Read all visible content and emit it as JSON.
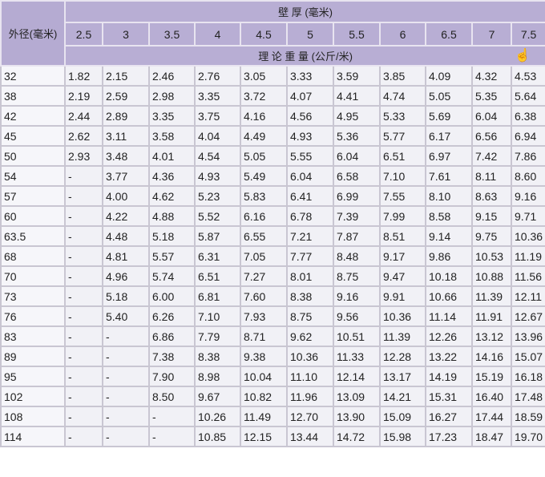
{
  "header": {
    "outer_diameter": "外径(毫米)",
    "wall_thickness": "壁 厚 (毫米)",
    "theoretical_weight": "理 论 重 量 (公斤/米)",
    "thicknesses": [
      "2.5",
      "3",
      "3.5",
      "4",
      "4.5",
      "5",
      "5.5",
      "6",
      "6.5",
      "7",
      "7.5"
    ]
  },
  "rows": [
    {
      "od": "32",
      "w": [
        "1.82",
        "2.15",
        "2.46",
        "2.76",
        "3.05",
        "3.33",
        "3.59",
        "3.85",
        "4.09",
        "4.32",
        "4.53"
      ]
    },
    {
      "od": "38",
      "w": [
        "2.19",
        "2.59",
        "2.98",
        "3.35",
        "3.72",
        "4.07",
        "4.41",
        "4.74",
        "5.05",
        "5.35",
        "5.64"
      ]
    },
    {
      "od": "42",
      "w": [
        "2.44",
        "2.89",
        "3.35",
        "3.75",
        "4.16",
        "4.56",
        "4.95",
        "5.33",
        "5.69",
        "6.04",
        "6.38"
      ]
    },
    {
      "od": "45",
      "w": [
        "2.62",
        "3.11",
        "3.58",
        "4.04",
        "4.49",
        "4.93",
        "5.36",
        "5.77",
        "6.17",
        "6.56",
        "6.94"
      ]
    },
    {
      "od": "50",
      "w": [
        "2.93",
        "3.48",
        "4.01",
        "4.54",
        "5.05",
        "5.55",
        "6.04",
        "6.51",
        "6.97",
        "7.42",
        "7.86"
      ]
    },
    {
      "od": "54",
      "w": [
        "-",
        "3.77",
        "4.36",
        "4.93",
        "5.49",
        "6.04",
        "6.58",
        "7.10",
        "7.61",
        "8.11",
        "8.60"
      ]
    },
    {
      "od": "57",
      "w": [
        "-",
        "4.00",
        "4.62",
        "5.23",
        "5.83",
        "6.41",
        "6.99",
        "7.55",
        "8.10",
        "8.63",
        "9.16"
      ]
    },
    {
      "od": "60",
      "w": [
        "-",
        "4.22",
        "4.88",
        "5.52",
        "6.16",
        "6.78",
        "7.39",
        "7.99",
        "8.58",
        "9.15",
        "9.71"
      ]
    },
    {
      "od": "63.5",
      "w": [
        "-",
        "4.48",
        "5.18",
        "5.87",
        "6.55",
        "7.21",
        "7.87",
        "8.51",
        "9.14",
        "9.75",
        "10.36"
      ]
    },
    {
      "od": "68",
      "w": [
        "-",
        "4.81",
        "5.57",
        "6.31",
        "7.05",
        "7.77",
        "8.48",
        "9.17",
        "9.86",
        "10.53",
        "11.19"
      ]
    },
    {
      "od": "70",
      "w": [
        "-",
        "4.96",
        "5.74",
        "6.51",
        "7.27",
        "8.01",
        "8.75",
        "9.47",
        "10.18",
        "10.88",
        "11.56"
      ]
    },
    {
      "od": "73",
      "w": [
        "-",
        "5.18",
        "6.00",
        "6.81",
        "7.60",
        "8.38",
        "9.16",
        "9.91",
        "10.66",
        "11.39",
        "12.11"
      ]
    },
    {
      "od": "76",
      "w": [
        "-",
        "5.40",
        "6.26",
        "7.10",
        "7.93",
        "8.75",
        "9.56",
        "10.36",
        "11.14",
        "11.91",
        "12.67"
      ]
    },
    {
      "od": "83",
      "w": [
        "-",
        "-",
        "6.86",
        "7.79",
        "8.71",
        "9.62",
        "10.51",
        "11.39",
        "12.26",
        "13.12",
        "13.96"
      ]
    },
    {
      "od": "89",
      "w": [
        "-",
        "-",
        "7.38",
        "8.38",
        "9.38",
        "10.36",
        "11.33",
        "12.28",
        "13.22",
        "14.16",
        "15.07"
      ]
    },
    {
      "od": "95",
      "w": [
        "-",
        "-",
        "7.90",
        "8.98",
        "10.04",
        "11.10",
        "12.14",
        "13.17",
        "14.19",
        "15.19",
        "16.18"
      ]
    },
    {
      "od": "102",
      "w": [
        "-",
        "-",
        "8.50",
        "9.67",
        "10.82",
        "11.96",
        "13.09",
        "14.21",
        "15.31",
        "16.40",
        "17.48"
      ]
    },
    {
      "od": "108",
      "w": [
        "-",
        "-",
        "-",
        "10.26",
        "11.49",
        "12.70",
        "13.90",
        "15.09",
        "16.27",
        "17.44",
        "18.59"
      ]
    },
    {
      "od": "114",
      "w": [
        "-",
        "-",
        "-",
        "10.85",
        "12.15",
        "13.44",
        "14.72",
        "15.98",
        "17.23",
        "18.47",
        "19.70"
      ]
    }
  ],
  "icons": {
    "cursor": "hand-pointer-icon"
  }
}
